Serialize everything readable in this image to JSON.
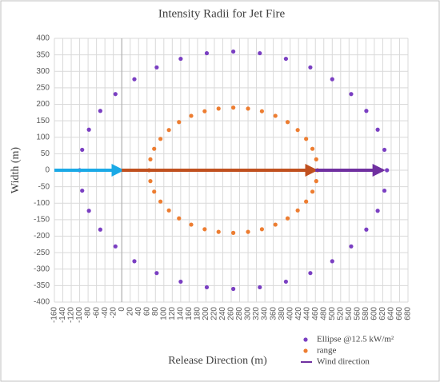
{
  "chart_data": {
    "type": "scatter",
    "title": "Intensity Radii for Jet Fire",
    "x_label": "Release Direction (m)",
    "y_label": "Width (m)",
    "xlim": [
      -160,
      680
    ],
    "ylim": [
      -400,
      400
    ],
    "xticks": [
      -160,
      -140,
      -120,
      -100,
      -80,
      -60,
      -40,
      -20,
      0,
      20,
      40,
      60,
      80,
      100,
      120,
      140,
      160,
      180,
      200,
      220,
      240,
      260,
      280,
      300,
      320,
      340,
      360,
      380,
      400,
      420,
      440,
      460,
      480,
      500,
      520,
      540,
      560,
      580,
      600,
      620,
      640,
      660,
      680
    ],
    "yticks": [
      -400,
      -350,
      -300,
      -250,
      -200,
      -150,
      -100,
      -50,
      0,
      50,
      100,
      150,
      200,
      250,
      300,
      350,
      400
    ],
    "grid": true,
    "series": [
      {
        "name": "Ellipse @12.5 kW/m²",
        "color": "#7a3fc2",
        "x": [
          630,
          624,
          608,
          581,
          545,
          500,
          448,
          390,
          328,
          265,
          202,
          140,
          83,
          30,
          -15,
          -51,
          -78,
          -94,
          -100,
          -94,
          -78,
          -51,
          -15,
          30,
          83,
          140,
          202,
          265,
          328,
          390,
          448,
          500,
          545,
          581,
          608,
          624
        ],
        "values": [
          0,
          62,
          123,
          180,
          231,
          276,
          312,
          338,
          355,
          360,
          355,
          338,
          312,
          276,
          231,
          180,
          123,
          62,
          0,
          -62,
          -123,
          -180,
          -231,
          -276,
          -312,
          -338,
          -355,
          -360,
          -355,
          -338,
          -312,
          -276,
          -231,
          -180,
          -123,
          -62
        ]
      },
      {
        "name": "range",
        "color": "#ed7d31",
        "x": [
          465,
          462,
          453,
          438,
          418,
          394,
          365,
          333,
          300,
          265,
          230,
          197,
          165,
          136,
          112,
          92,
          77,
          68,
          65,
          68,
          77,
          92,
          112,
          136,
          165,
          197,
          230,
          265,
          300,
          333,
          365,
          394,
          418,
          438,
          453,
          462
        ],
        "values": [
          0,
          33,
          65,
          95,
          122,
          146,
          165,
          179,
          187,
          190,
          187,
          179,
          165,
          146,
          122,
          95,
          65,
          33,
          0,
          -33,
          -65,
          -95,
          -122,
          -146,
          -165,
          -179,
          -187,
          -190,
          -187,
          -179,
          -165,
          -146,
          -122,
          -95,
          -65,
          -33
        ]
      },
      {
        "name": "Wind direction",
        "type": "line",
        "color": "#7030a0",
        "x": [
          -160,
          0,
          460,
          620
        ],
        "values": [
          0,
          0,
          0,
          0
        ],
        "segment_colors": [
          "#1aa9e6",
          "#c0501f",
          "#7030a0"
        ]
      }
    ]
  }
}
